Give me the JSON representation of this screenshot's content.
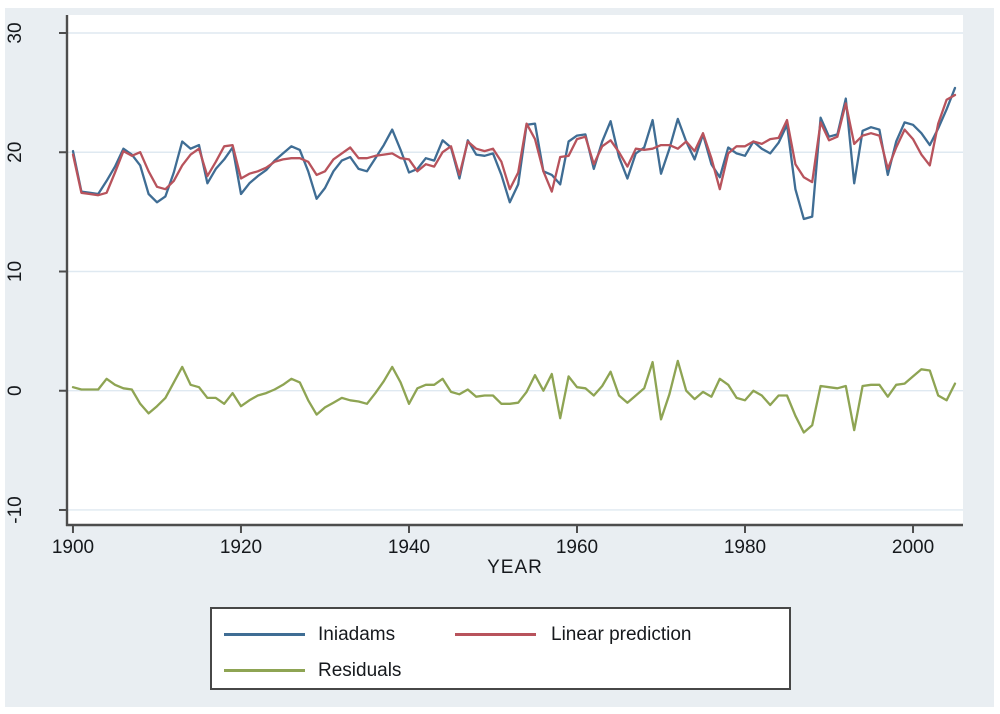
{
  "figure": {
    "background_color": "#e9eef2",
    "plot_background_color": "#ffffff",
    "grid_color": "#dfe9f1",
    "axis_color": "#4d4d4d",
    "text_color": "#16191d",
    "legend_border_color": "#474747"
  },
  "chart_data": {
    "type": "line",
    "title": "",
    "xlabel": "YEAR",
    "ylabel": "",
    "grid": "horizontal",
    "legend_position": "bottom-center",
    "xlim": [
      1899.29,
      2005.95
    ],
    "ylim": [
      -11.26,
      31.51
    ],
    "x_ticks": [
      1900,
      1920,
      1940,
      1960,
      1980,
      2000
    ],
    "y_ticks": [
      30,
      20,
      10,
      0,
      -10
    ],
    "x_start": 1900,
    "x_step": 1,
    "series": [
      {
        "name": "Iniadams",
        "color": "#3f6d94",
        "values": [
          20.1,
          16.7,
          16.6,
          16.5,
          17.6,
          18.8,
          20.3,
          19.8,
          18.9,
          16.5,
          15.8,
          16.3,
          18.3,
          20.9,
          20.3,
          20.6,
          17.4,
          18.6,
          19.4,
          20.4,
          16.5,
          17.4,
          18.0,
          18.5,
          19.3,
          19.9,
          20.5,
          20.2,
          18.4,
          16.1,
          17.0,
          18.4,
          19.3,
          19.6,
          18.6,
          18.4,
          19.5,
          20.6,
          21.9,
          20.2,
          18.3,
          18.6,
          19.5,
          19.3,
          21.0,
          20.4,
          17.8,
          21.0,
          19.8,
          19.7,
          19.9,
          18.1,
          15.8,
          17.3,
          22.3,
          22.4,
          18.4,
          18.1,
          17.3,
          20.9,
          21.4,
          21.5,
          18.6,
          20.9,
          22.6,
          19.6,
          17.8,
          19.9,
          20.4,
          22.7,
          18.2,
          20.3,
          22.8,
          20.9,
          19.4,
          21.5,
          19.0,
          17.9,
          20.4,
          19.9,
          19.7,
          20.9,
          20.3,
          19.9,
          20.8,
          22.3,
          16.9,
          14.4,
          14.6,
          22.9,
          21.3,
          21.5,
          24.5,
          17.4,
          21.8,
          22.1,
          21.9,
          18.1,
          20.9,
          22.5,
          22.3,
          21.6,
          20.6,
          22.0,
          23.6,
          25.4
        ]
      },
      {
        "name": "Linear prediction",
        "color": "#b8535c",
        "values": [
          19.8,
          16.6,
          16.5,
          16.4,
          16.6,
          18.3,
          20.1,
          19.7,
          20.0,
          18.4,
          17.1,
          16.9,
          17.6,
          18.9,
          19.8,
          20.3,
          18.0,
          19.2,
          20.5,
          20.6,
          17.8,
          18.2,
          18.4,
          18.7,
          19.2,
          19.4,
          19.5,
          19.5,
          19.2,
          18.1,
          18.4,
          19.4,
          19.9,
          20.4,
          19.5,
          19.5,
          19.7,
          19.8,
          19.9,
          19.5,
          19.4,
          18.4,
          19.0,
          18.8,
          20.0,
          20.5,
          18.1,
          20.9,
          20.3,
          20.1,
          20.3,
          19.2,
          16.9,
          18.3,
          22.4,
          21.1,
          18.4,
          16.7,
          19.6,
          19.7,
          21.1,
          21.3,
          19.0,
          20.5,
          21.0,
          20.0,
          18.8,
          20.3,
          20.2,
          20.3,
          20.6,
          20.6,
          20.3,
          20.9,
          20.1,
          21.6,
          19.5,
          16.9,
          19.9,
          20.5,
          20.5,
          20.9,
          20.7,
          21.1,
          21.2,
          22.7,
          19.0,
          17.9,
          17.5,
          22.5,
          21.0,
          21.3,
          24.1,
          20.7,
          21.4,
          21.6,
          21.4,
          18.6,
          20.4,
          21.9,
          21.1,
          19.8,
          18.9,
          22.4,
          24.4,
          24.8
        ]
      },
      {
        "name": "Residuals",
        "color": "#8ea453",
        "values": [
          0.3,
          0.1,
          0.1,
          0.1,
          1.0,
          0.5,
          0.2,
          0.1,
          -1.1,
          -1.9,
          -1.3,
          -0.6,
          0.7,
          2.0,
          0.5,
          0.3,
          -0.6,
          -0.6,
          -1.1,
          -0.2,
          -1.3,
          -0.8,
          -0.4,
          -0.2,
          0.1,
          0.5,
          1.0,
          0.7,
          -0.8,
          -2.0,
          -1.4,
          -1.0,
          -0.6,
          -0.8,
          -0.9,
          -1.1,
          -0.2,
          0.8,
          2.0,
          0.7,
          -1.1,
          0.2,
          0.5,
          0.5,
          1.0,
          -0.1,
          -0.3,
          0.1,
          -0.5,
          -0.4,
          -0.4,
          -1.1,
          -1.1,
          -1.0,
          -0.1,
          1.3,
          0.0,
          1.4,
          -2.3,
          1.2,
          0.3,
          0.2,
          -0.4,
          0.4,
          1.6,
          -0.4,
          -1.0,
          -0.4,
          0.2,
          2.4,
          -2.4,
          -0.3,
          2.5,
          0.0,
          -0.7,
          -0.1,
          -0.5,
          1.0,
          0.5,
          -0.6,
          -0.8,
          0.0,
          -0.4,
          -1.2,
          -0.4,
          -0.4,
          -2.1,
          -3.5,
          -2.9,
          0.4,
          0.3,
          0.2,
          0.4,
          -3.3,
          0.4,
          0.5,
          0.5,
          -0.5,
          0.5,
          0.6,
          1.2,
          1.8,
          1.7,
          -0.4,
          -0.8,
          0.6
        ]
      }
    ]
  },
  "legend": {
    "items": [
      {
        "label": "Iniadams"
      },
      {
        "label": "Linear prediction"
      },
      {
        "label": "Residuals"
      }
    ]
  }
}
